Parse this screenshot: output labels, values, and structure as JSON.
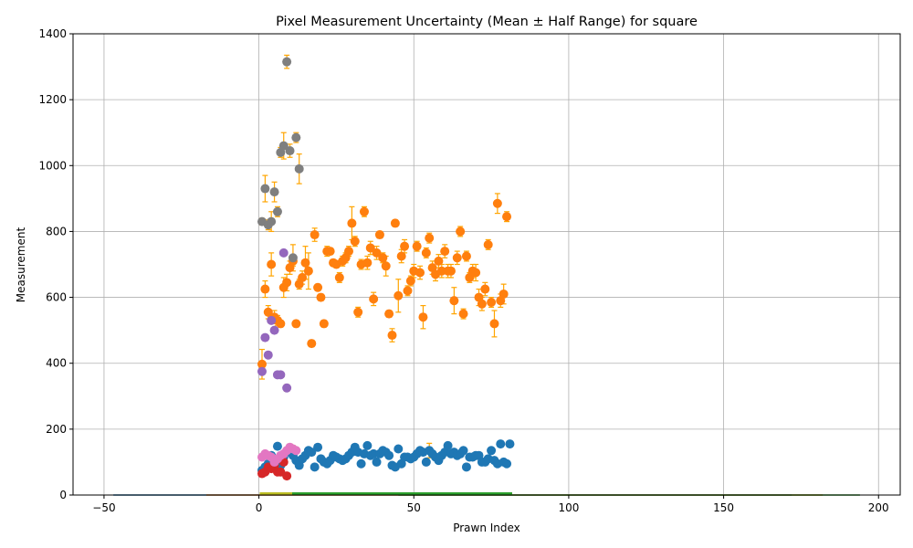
{
  "chart_data": {
    "type": "scatter",
    "title": "Pixel Measurement Uncertainty (Mean ± Half Range) for square",
    "xlabel": "Prawn Index",
    "ylabel": "Measurement",
    "xlim": [
      -60,
      207
    ],
    "ylim": [
      0,
      1400
    ],
    "xticks": [
      -50,
      0,
      50,
      100,
      150,
      200
    ],
    "yticks": [
      0,
      200,
      400,
      600,
      800,
      1000,
      1200,
      1400
    ],
    "grid": true,
    "legend": "none",
    "errorbar_color": "#ffa500",
    "series": [
      {
        "color": "#1f77b4",
        "x": [
          1,
          2,
          3,
          4,
          5,
          6,
          7,
          8,
          9,
          10,
          11,
          12,
          13,
          14,
          15,
          16,
          17,
          18,
          19,
          20,
          21,
          22,
          23,
          24,
          25,
          26,
          27,
          28,
          29,
          30,
          31,
          32,
          33,
          34,
          35,
          36,
          37,
          38,
          39,
          40,
          41,
          42,
          43,
          44,
          45,
          46,
          47,
          48,
          49,
          50,
          51,
          52,
          53,
          54,
          55,
          56,
          57,
          58,
          59,
          60,
          61,
          62,
          63,
          64,
          65,
          66,
          67,
          68,
          69,
          70,
          71,
          72,
          73,
          74,
          75,
          76,
          77,
          78,
          79,
          80,
          81
        ],
        "y": [
          75,
          85,
          95,
          120,
          110,
          148,
          90,
          115,
          130,
          140,
          120,
          105,
          90,
          110,
          120,
          135,
          130,
          85,
          145,
          110,
          100,
          95,
          105,
          120,
          115,
          110,
          105,
          110,
          120,
          130,
          145,
          130,
          95,
          125,
          150,
          120,
          125,
          100,
          125,
          135,
          130,
          120,
          90,
          85,
          140,
          95,
          115,
          115,
          110,
          115,
          125,
          135,
          130,
          100,
          135,
          125,
          115,
          105,
          120,
          130,
          150,
          125,
          130,
          120,
          125,
          135,
          85,
          115,
          115,
          120,
          120,
          100,
          100,
          110,
          135,
          105,
          95,
          155,
          100,
          95,
          155
        ],
        "err": [
          5,
          5,
          5,
          5,
          5,
          5,
          5,
          5,
          5,
          5,
          5,
          5,
          5,
          5,
          5,
          5,
          5,
          5,
          5,
          5,
          5,
          5,
          5,
          5,
          5,
          5,
          5,
          5,
          5,
          5,
          5,
          5,
          5,
          5,
          5,
          5,
          5,
          5,
          5,
          5,
          5,
          5,
          5,
          5,
          5,
          5,
          5,
          5,
          5,
          5,
          5,
          5,
          5,
          5,
          22,
          5,
          5,
          5,
          5,
          5,
          5,
          5,
          5,
          5,
          5,
          5,
          5,
          5,
          5,
          5,
          5,
          5,
          5,
          5,
          5,
          5,
          5,
          5,
          5,
          5,
          5
        ]
      },
      {
        "color": "#ff7f0e",
        "x": [
          1,
          2,
          3,
          4,
          5,
          6,
          7,
          8,
          9,
          10,
          11,
          12,
          13,
          14,
          15,
          16,
          17,
          18,
          19,
          20,
          21,
          22,
          23,
          24,
          25,
          26,
          27,
          28,
          29,
          30,
          31,
          32,
          33,
          34,
          35,
          36,
          37,
          38,
          39,
          40,
          41,
          42,
          43,
          44,
          45,
          46,
          47,
          48,
          49,
          50,
          51,
          52,
          53,
          54,
          55,
          56,
          57,
          58,
          59,
          60,
          61,
          62,
          63,
          64,
          65,
          66,
          67,
          68,
          69,
          70,
          71,
          72,
          73,
          74,
          75,
          76,
          77,
          78,
          79,
          80,
          81
        ],
        "y": [
          397,
          625,
          555,
          700,
          540,
          530,
          520,
          630,
          645,
          690,
          710,
          520,
          640,
          660,
          705,
          680,
          460,
          790,
          630,
          600,
          520,
          740,
          740,
          705,
          700,
          660,
          710,
          720,
          740,
          825,
          770,
          555,
          700,
          860,
          705,
          750,
          595,
          735,
          790,
          720,
          695,
          550,
          485,
          825,
          605,
          725,
          755,
          620,
          650,
          680,
          755,
          675,
          540,
          735,
          780,
          690,
          670,
          710,
          680,
          740,
          680,
          680,
          590,
          720,
          800,
          550,
          725,
          660,
          680,
          675,
          600,
          580,
          625,
          760,
          585,
          520,
          885,
          590,
          610,
          845,
          0
        ],
        "err": [
          45,
          25,
          20,
          35,
          20,
          15,
          10,
          30,
          25,
          20,
          15,
          10,
          15,
          20,
          50,
          55,
          10,
          20,
          10,
          10,
          10,
          15,
          10,
          10,
          10,
          15,
          15,
          15,
          15,
          50,
          15,
          15,
          15,
          15,
          20,
          20,
          20,
          20,
          10,
          15,
          30,
          10,
          20,
          10,
          50,
          20,
          20,
          15,
          15,
          20,
          15,
          20,
          35,
          15,
          15,
          20,
          20,
          20,
          20,
          20,
          20,
          20,
          40,
          20,
          15,
          15,
          15,
          15,
          20,
          25,
          25,
          20,
          20,
          15,
          15,
          40,
          30,
          20,
          30,
          15,
          0
        ]
      },
      {
        "color": "#2ca02c",
        "x": [
          1,
          2,
          3,
          4,
          5,
          6,
          7,
          8,
          9,
          10,
          11,
          12,
          13,
          14,
          15,
          16,
          17,
          18,
          19,
          20,
          21,
          22,
          23,
          24,
          25,
          26,
          27,
          28,
          29,
          30,
          31,
          32,
          33,
          34,
          35,
          36,
          37,
          38,
          39,
          40,
          41,
          42,
          43,
          44,
          45,
          46,
          47,
          48,
          49,
          50,
          51,
          52,
          53,
          54,
          55,
          56,
          57,
          58,
          59,
          60,
          61,
          62,
          63,
          64,
          65,
          66,
          67,
          68,
          69,
          70,
          71,
          72,
          73,
          74,
          75,
          76,
          77,
          78,
          79,
          80,
          81
        ],
        "y": [
          1,
          1,
          1,
          1,
          1,
          1,
          1,
          1,
          1,
          1,
          1,
          1,
          1,
          1,
          1,
          1,
          1,
          1,
          1,
          1,
          1,
          1,
          1,
          1,
          1,
          1,
          1,
          1,
          1,
          1,
          1,
          1,
          1,
          1,
          1,
          1,
          1,
          1,
          1,
          1,
          1,
          1,
          1,
          1,
          1,
          1,
          1,
          1,
          1,
          1,
          1,
          1,
          1,
          1,
          1,
          1,
          1,
          1,
          1,
          1,
          1,
          1,
          1,
          1,
          1,
          1,
          1,
          1,
          1,
          1,
          1,
          1,
          1,
          1,
          1,
          1,
          1,
          1,
          1,
          1,
          1
        ]
      },
      {
        "color": "#d62728",
        "x": [
          1,
          2,
          3,
          4,
          5,
          6,
          7,
          8,
          9
        ],
        "y": [
          65,
          70,
          85,
          80,
          90,
          70,
          70,
          100,
          58
        ],
        "err": [
          5,
          5,
          5,
          5,
          5,
          5,
          5,
          5,
          5
        ]
      },
      {
        "color": "#9467bd",
        "x": [
          1,
          2,
          3,
          4,
          5,
          6,
          7,
          8,
          9
        ],
        "y": [
          375,
          478,
          425,
          530,
          500,
          365,
          365,
          735,
          325
        ],
        "err": [
          5,
          5,
          5,
          5,
          5,
          5,
          5,
          5,
          10
        ]
      },
      {
        "color": "#8c564b",
        "x": [
          1,
          2,
          3,
          4,
          5,
          6,
          7,
          8,
          9
        ],
        "y": [
          1,
          1,
          1,
          1,
          1,
          1,
          1,
          1,
          1
        ]
      },
      {
        "color": "#e377c2",
        "x": [
          1,
          2,
          3,
          4,
          5,
          6,
          7,
          8,
          9,
          10,
          11,
          12
        ],
        "y": [
          115,
          125,
          120,
          115,
          100,
          110,
          120,
          125,
          135,
          145,
          140,
          135
        ],
        "err": [
          5,
          5,
          5,
          5,
          5,
          5,
          5,
          5,
          5,
          10,
          10,
          5
        ]
      },
      {
        "color": "#7f7f7f",
        "x": [
          1,
          2,
          3,
          4,
          5,
          6,
          7,
          8,
          9,
          10,
          11,
          12,
          13
        ],
        "y": [
          830,
          930,
          820,
          830,
          920,
          860,
          1040,
          1060,
          1315,
          1045,
          720,
          1085,
          990
        ],
        "err": [
          10,
          40,
          15,
          30,
          30,
          15,
          15,
          40,
          20,
          20,
          40,
          15,
          45
        ]
      },
      {
        "color": "#bcbd22",
        "x": [
          1,
          2,
          3,
          4,
          5,
          6,
          7,
          8,
          9,
          10
        ],
        "y": [
          1,
          1,
          1,
          1,
          1,
          1,
          1,
          1,
          1,
          1
        ]
      }
    ],
    "baseline_lines": [
      {
        "color": "#1f77b4",
        "x": [
          -47,
          172
        ]
      },
      {
        "color": "#ff7f0e",
        "x": [
          -17,
          182
        ]
      },
      {
        "color": "#2ca02c",
        "x": [
          45,
          194
        ]
      }
    ]
  }
}
